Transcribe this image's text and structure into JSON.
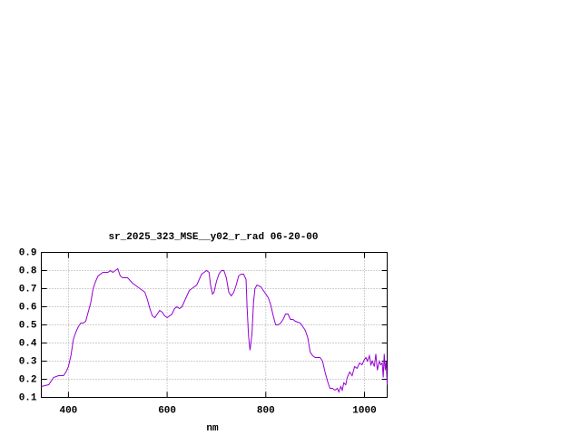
{
  "chart_data": {
    "type": "line",
    "title": "sr_2025_323_MSE__y02_r_rad 06-20-00",
    "x_label": "nm",
    "x": [
      345,
      360,
      370,
      380,
      390,
      395,
      400,
      405,
      410,
      415,
      420,
      425,
      430,
      435,
      440,
      445,
      450,
      455,
      460,
      470,
      480,
      485,
      490,
      495,
      500,
      505,
      510,
      520,
      530,
      540,
      550,
      555,
      560,
      565,
      570,
      575,
      580,
      585,
      590,
      595,
      600,
      610,
      615,
      620,
      625,
      630,
      640,
      645,
      650,
      660,
      665,
      670,
      675,
      680,
      685,
      688,
      692,
      695,
      700,
      705,
      710,
      715,
      720,
      725,
      730,
      735,
      740,
      745,
      750,
      755,
      760,
      762,
      765,
      768,
      772,
      775,
      778,
      782,
      790,
      795,
      800,
      805,
      810,
      815,
      820,
      825,
      830,
      835,
      840,
      845,
      850,
      855,
      860,
      870,
      880,
      885,
      890,
      895,
      900,
      905,
      910,
      915,
      920,
      925,
      930,
      935,
      940,
      945,
      948,
      952,
      955,
      958,
      962,
      965,
      970,
      975,
      980,
      985,
      990,
      995,
      1000,
      1003,
      1006,
      1010,
      1013,
      1016,
      1020,
      1023,
      1026,
      1030,
      1033,
      1036,
      1038,
      1040,
      1042,
      1044,
      1046
    ],
    "values": [
      0.16,
      0.17,
      0.21,
      0.22,
      0.22,
      0.24,
      0.27,
      0.33,
      0.42,
      0.46,
      0.49,
      0.51,
      0.51,
      0.52,
      0.57,
      0.62,
      0.7,
      0.74,
      0.77,
      0.79,
      0.79,
      0.8,
      0.79,
      0.8,
      0.81,
      0.77,
      0.76,
      0.76,
      0.73,
      0.71,
      0.69,
      0.68,
      0.64,
      0.59,
      0.55,
      0.54,
      0.56,
      0.58,
      0.57,
      0.55,
      0.54,
      0.56,
      0.59,
      0.6,
      0.59,
      0.6,
      0.66,
      0.69,
      0.7,
      0.72,
      0.75,
      0.78,
      0.79,
      0.8,
      0.79,
      0.72,
      0.67,
      0.68,
      0.74,
      0.78,
      0.8,
      0.8,
      0.76,
      0.68,
      0.66,
      0.68,
      0.72,
      0.77,
      0.78,
      0.78,
      0.75,
      0.6,
      0.44,
      0.36,
      0.45,
      0.62,
      0.7,
      0.72,
      0.71,
      0.69,
      0.67,
      0.65,
      0.61,
      0.55,
      0.5,
      0.5,
      0.51,
      0.53,
      0.56,
      0.56,
      0.53,
      0.53,
      0.52,
      0.51,
      0.47,
      0.43,
      0.35,
      0.33,
      0.32,
      0.32,
      0.32,
      0.3,
      0.24,
      0.19,
      0.15,
      0.15,
      0.14,
      0.15,
      0.13,
      0.16,
      0.14,
      0.18,
      0.17,
      0.21,
      0.24,
      0.22,
      0.27,
      0.26,
      0.29,
      0.28,
      0.31,
      0.32,
      0.3,
      0.33,
      0.28,
      0.3,
      0.27,
      0.34,
      0.25,
      0.3,
      0.28,
      0.29,
      0.21,
      0.34,
      0.25,
      0.3,
      0.17
    ],
    "color": "#9400d3",
    "xlim": [
      345,
      1046
    ],
    "xticks": [
      400,
      600,
      800,
      1000
    ],
    "ylim": [
      0.1,
      0.9
    ],
    "yticks": [
      0.1,
      0.2,
      0.3,
      0.4,
      0.5,
      0.6,
      0.7,
      0.8,
      0.9
    ],
    "grid": true
  }
}
